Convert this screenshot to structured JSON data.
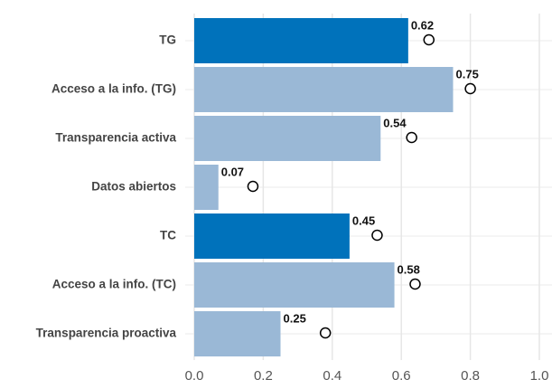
{
  "chart_data": {
    "type": "bar",
    "orientation": "horizontal",
    "categories": [
      "TG",
      "Acceso a la info. (TG)",
      "Transparencia activa",
      "Datos abiertos",
      "TC",
      "Acceso a la info. (TC)",
      "Transparencia proactiva"
    ],
    "series": [
      {
        "colors": [
          "#0072bb",
          "#9ab8d6",
          "#9ab8d6",
          "#9ab8d6",
          "#0072bb",
          "#9ab8d6",
          "#9ab8d6"
        ],
        "values": [
          0.62,
          0.75,
          0.54,
          0.07,
          0.45,
          0.58,
          0.25
        ]
      },
      {
        "marker": "circle",
        "color": "#000000",
        "values": [
          0.68,
          0.8,
          0.63,
          0.17,
          0.53,
          0.64,
          0.38
        ]
      }
    ],
    "xlim": [
      0,
      1
    ],
    "xticks": [
      {
        "value": 0,
        "label": "0.0"
      },
      0.2,
      0.4,
      0.6,
      0.8,
      {
        "value": 1,
        "label": "1.0"
      }
    ],
    "grid": true
  }
}
